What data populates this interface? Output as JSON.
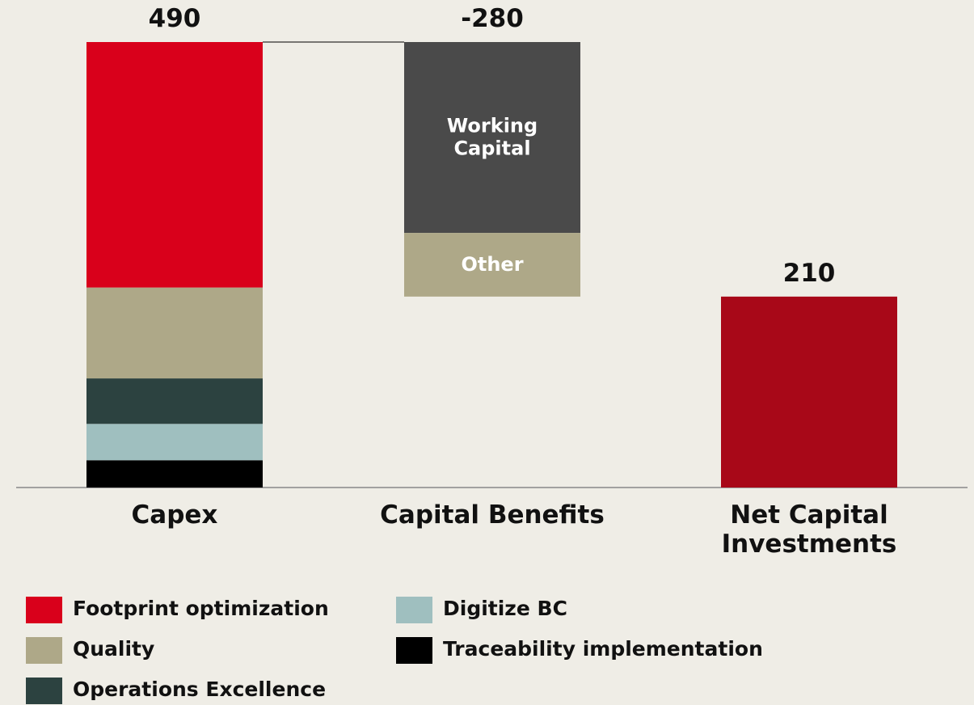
{
  "chart_data": {
    "type": "waterfall",
    "categories": [
      "Capex",
      "Capital Benefits",
      "Net Capital Investments"
    ],
    "values": [
      490,
      -280,
      210
    ],
    "ylim": [
      0,
      490
    ],
    "total_color": "#a80818",
    "capex_segments": [
      {
        "name": "Footprint optimization",
        "color": "#d9001b",
        "value": 270
      },
      {
        "name": "Quality",
        "color": "#aea888",
        "value": 100
      },
      {
        "name": "Operations Excellence",
        "color": "#2c4240",
        "value": 50
      },
      {
        "name": "Digitize BC",
        "color": "#9fbfbf",
        "value": 40
      },
      {
        "name": "Traceability implementation",
        "color": "#000000",
        "value": 30
      }
    ],
    "benefit_segments": [
      {
        "name": "Working Capital",
        "color": "#4a4a4a",
        "value": -210
      },
      {
        "name": "Other",
        "color": "#aea888",
        "value": -70
      }
    ]
  }
}
